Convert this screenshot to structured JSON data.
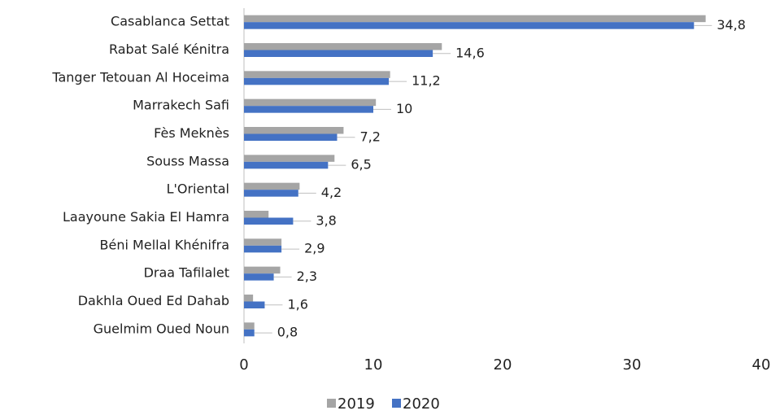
{
  "chart_data": {
    "type": "bar",
    "orientation": "horizontal",
    "categories": [
      "Casablanca Settat",
      "Rabat Salé Kénitra",
      "Tanger Tetouan Al Hoceima",
      "Marrakech Safi",
      "Fès Meknès",
      "Souss Massa",
      "L'Oriental",
      "Laayoune Sakia El Hamra",
      "Béni Mellal Khénifra",
      "Draa Tafilalet",
      "Dakhla Oued Ed Dahab",
      "Guelmim Oued Noun"
    ],
    "series": [
      {
        "name": "2019",
        "color": "#a5a5a5",
        "values": [
          35.7,
          15.3,
          11.3,
          10.2,
          7.7,
          7.0,
          4.3,
          1.9,
          2.9,
          2.8,
          0.7,
          0.8
        ]
      },
      {
        "name": "2020",
        "color": "#4472c4",
        "values": [
          34.8,
          14.6,
          11.2,
          10,
          7.2,
          6.5,
          4.2,
          3.8,
          2.9,
          2.3,
          1.6,
          0.8
        ],
        "value_labels": [
          "34,8",
          "14,6",
          "11,2",
          "10",
          "7,2",
          "6,5",
          "4,2",
          "3,8",
          "2,9",
          "2,3",
          "1,6",
          "0,8"
        ]
      }
    ],
    "xlim": [
      0,
      40
    ],
    "xticks": [
      0,
      10,
      20,
      30,
      40
    ],
    "legend": "bottom"
  }
}
